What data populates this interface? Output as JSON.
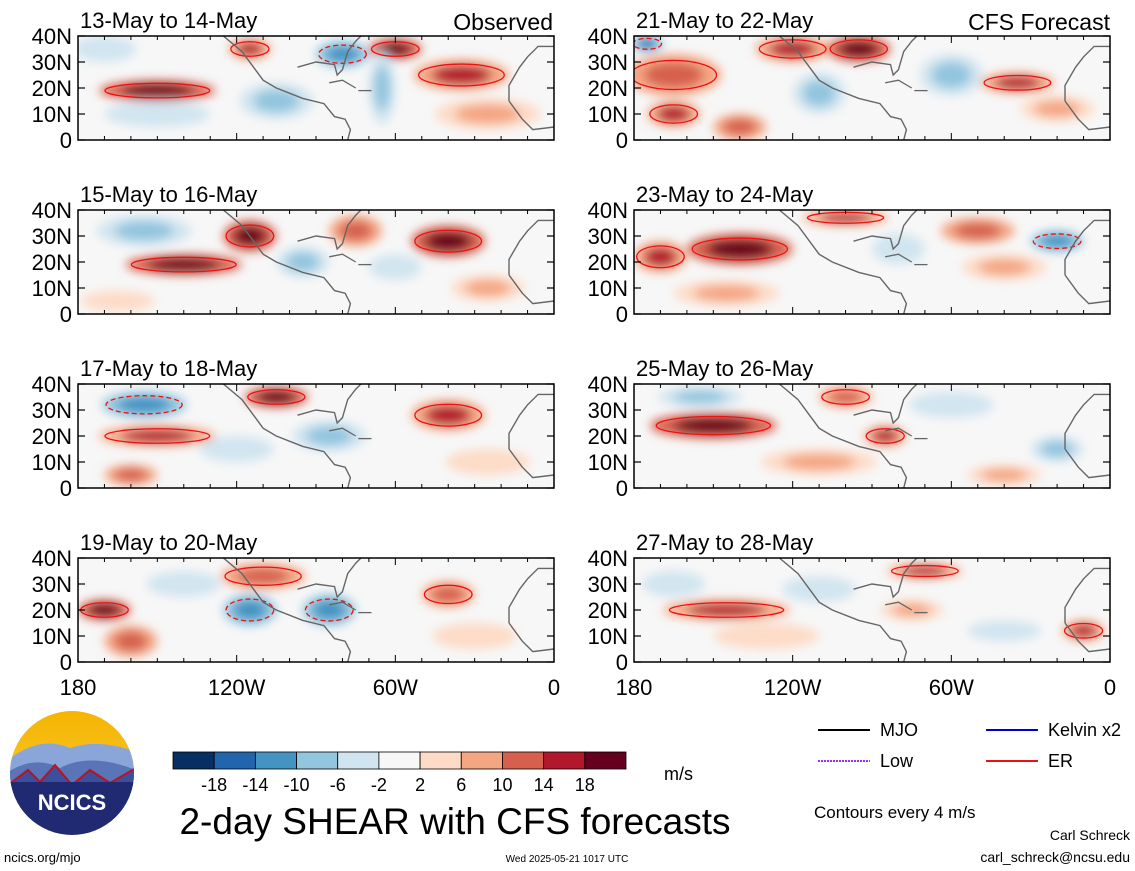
{
  "figure": {
    "title": "2-day SHEAR with CFS forecasts",
    "observed_label": "Observed",
    "forecast_label": "CFS Forecast",
    "contour_note": "Contours every 4 m/s",
    "source_url": "ncics.org/mjo",
    "timestamp": "Wed 2025-05-21 1017 UTC",
    "author": "Carl Schreck",
    "email": "carl_schreck@ncsu.edu",
    "logo_text": "NCICS"
  },
  "colorbar": {
    "unit": "m/s",
    "ticks": [
      "-18",
      "-14",
      "-10",
      "-6",
      "-2",
      "2",
      "6",
      "10",
      "14",
      "18"
    ],
    "colors": [
      "#053061",
      "#2166ac",
      "#4393c3",
      "#92c5de",
      "#d1e5f0",
      "#f7f7f7",
      "#fddbc7",
      "#f4a582",
      "#d6604d",
      "#b2182b",
      "#67001f"
    ]
  },
  "legend": {
    "items": [
      {
        "label": "MJO",
        "color": "#000000",
        "style": "solid"
      },
      {
        "label": "Kelvin x2",
        "color": "#0000cc",
        "style": "solid"
      },
      {
        "label": "Low",
        "color": "#9933ff",
        "style": "dotted"
      },
      {
        "label": "ER",
        "color": "#ee1111",
        "style": "solid"
      }
    ]
  },
  "chart_data": {
    "type": "heatmap",
    "variable": "SHEAR",
    "unit": "m/s",
    "xlim": [
      -180,
      0
    ],
    "ylim": [
      0,
      40
    ],
    "x_ticks": [
      -180,
      -120,
      -60,
      0
    ],
    "x_tick_labels": [
      "180",
      "120W",
      "60W",
      "0"
    ],
    "y_ticks": [
      0,
      10,
      20,
      30,
      40
    ],
    "y_tick_labels": [
      "0",
      "10N",
      "20N",
      "30N",
      "40N"
    ],
    "panels": [
      {
        "label": "13-May to 14-May",
        "source": "Observed",
        "features": [
          {
            "lon": -150,
            "lat": 19,
            "value": 20,
            "rlon": 22,
            "rlat": 4
          },
          {
            "lon": -115,
            "lat": 35,
            "value": 16,
            "rlon": 8,
            "rlat": 4
          },
          {
            "lon": -80,
            "lat": 33,
            "value": -12,
            "rlon": 10,
            "rlat": 5
          },
          {
            "lon": -60,
            "lat": 35,
            "value": 18,
            "rlon": 10,
            "rlat": 4
          },
          {
            "lon": -35,
            "lat": 25,
            "value": 14,
            "rlon": 18,
            "rlat": 6
          },
          {
            "lon": -150,
            "lat": 10,
            "value": -6,
            "rlon": 20,
            "rlat": 5
          },
          {
            "lon": -105,
            "lat": 15,
            "value": -8,
            "rlon": 14,
            "rlat": 7
          },
          {
            "lon": -65,
            "lat": 20,
            "value": -10,
            "rlon": 5,
            "rlat": 14
          },
          {
            "lon": -25,
            "lat": 10,
            "value": 6,
            "rlon": 20,
            "rlat": 6
          },
          {
            "lon": -170,
            "lat": 35,
            "value": -4,
            "rlon": 12,
            "rlat": 5
          }
        ]
      },
      {
        "label": "21-May to 22-May",
        "source": "CFS Forecast",
        "features": [
          {
            "lon": -165,
            "lat": 25,
            "value": 12,
            "rlon": 18,
            "rlat": 8
          },
          {
            "lon": -120,
            "lat": 35,
            "value": 16,
            "rlon": 14,
            "rlat": 5
          },
          {
            "lon": -95,
            "lat": 35,
            "value": 18,
            "rlon": 12,
            "rlat": 5
          },
          {
            "lon": -35,
            "lat": 22,
            "value": 16,
            "rlon": 14,
            "rlat": 4
          },
          {
            "lon": -110,
            "lat": 18,
            "value": -10,
            "rlon": 10,
            "rlat": 8
          },
          {
            "lon": -60,
            "lat": 25,
            "value": -8,
            "rlon": 12,
            "rlat": 8
          },
          {
            "lon": -175,
            "lat": 37,
            "value": -16,
            "rlon": 6,
            "rlat": 3
          },
          {
            "lon": -140,
            "lat": 5,
            "value": 10,
            "rlon": 10,
            "rlat": 5
          },
          {
            "lon": -165,
            "lat": 10,
            "value": 14,
            "rlon": 10,
            "rlat": 5
          },
          {
            "lon": -20,
            "lat": 12,
            "value": 6,
            "rlon": 14,
            "rlat": 5
          }
        ]
      },
      {
        "label": "15-May to 16-May",
        "source": "Observed",
        "features": [
          {
            "lon": -140,
            "lat": 19,
            "value": 18,
            "rlon": 22,
            "rlat": 4
          },
          {
            "lon": -115,
            "lat": 30,
            "value": 18,
            "rlon": 10,
            "rlat": 6
          },
          {
            "lon": -40,
            "lat": 28,
            "value": 18,
            "rlon": 14,
            "rlat": 6
          },
          {
            "lon": -75,
            "lat": 32,
            "value": 10,
            "rlon": 10,
            "rlat": 6
          },
          {
            "lon": -155,
            "lat": 32,
            "value": -8,
            "rlon": 18,
            "rlat": 6
          },
          {
            "lon": -95,
            "lat": 20,
            "value": -10,
            "rlon": 10,
            "rlat": 6
          },
          {
            "lon": -60,
            "lat": 18,
            "value": -6,
            "rlon": 10,
            "rlat": 5
          },
          {
            "lon": -25,
            "lat": 10,
            "value": 6,
            "rlon": 14,
            "rlat": 5
          },
          {
            "lon": -165,
            "lat": 5,
            "value": 4,
            "rlon": 14,
            "rlat": 4
          }
        ]
      },
      {
        "label": "23-May to 24-May",
        "source": "CFS Forecast",
        "features": [
          {
            "lon": -140,
            "lat": 25,
            "value": 20,
            "rlon": 20,
            "rlat": 6
          },
          {
            "lon": -170,
            "lat": 22,
            "value": 16,
            "rlon": 10,
            "rlat": 6
          },
          {
            "lon": -100,
            "lat": 37,
            "value": 16,
            "rlon": 16,
            "rlat": 3
          },
          {
            "lon": -50,
            "lat": 32,
            "value": 10,
            "rlon": 14,
            "rlat": 5
          },
          {
            "lon": -20,
            "lat": 28,
            "value": -12,
            "rlon": 10,
            "rlat": 4
          },
          {
            "lon": -80,
            "lat": 25,
            "value": -6,
            "rlon": 10,
            "rlat": 6
          },
          {
            "lon": -40,
            "lat": 18,
            "value": 8,
            "rlon": 16,
            "rlat": 5
          },
          {
            "lon": -145,
            "lat": 8,
            "value": 6,
            "rlon": 20,
            "rlat": 5
          }
        ]
      },
      {
        "label": "17-May to 18-May",
        "source": "Observed",
        "features": [
          {
            "lon": -150,
            "lat": 20,
            "value": 14,
            "rlon": 22,
            "rlat": 4
          },
          {
            "lon": -105,
            "lat": 35,
            "value": 18,
            "rlon": 12,
            "rlat": 4
          },
          {
            "lon": -40,
            "lat": 28,
            "value": 14,
            "rlon": 14,
            "rlat": 6
          },
          {
            "lon": -155,
            "lat": 32,
            "value": -12,
            "rlon": 16,
            "rlat": 5
          },
          {
            "lon": -85,
            "lat": 20,
            "value": -10,
            "rlon": 14,
            "rlat": 6
          },
          {
            "lon": -160,
            "lat": 5,
            "value": 10,
            "rlon": 10,
            "rlat": 4
          },
          {
            "lon": -120,
            "lat": 15,
            "value": -6,
            "rlon": 14,
            "rlat": 5
          },
          {
            "lon": -25,
            "lat": 10,
            "value": 4,
            "rlon": 16,
            "rlat": 5
          }
        ]
      },
      {
        "label": "25-May to 26-May",
        "source": "CFS Forecast",
        "features": [
          {
            "lon": -150,
            "lat": 24,
            "value": 20,
            "rlon": 24,
            "rlat": 5
          },
          {
            "lon": -85,
            "lat": 20,
            "value": 14,
            "rlon": 8,
            "rlat": 4
          },
          {
            "lon": -155,
            "lat": 35,
            "value": -10,
            "rlon": 16,
            "rlat": 4
          },
          {
            "lon": -60,
            "lat": 32,
            "value": -6,
            "rlon": 16,
            "rlat": 5
          },
          {
            "lon": -20,
            "lat": 15,
            "value": -8,
            "rlon": 10,
            "rlat": 5
          },
          {
            "lon": -110,
            "lat": 10,
            "value": 6,
            "rlon": 22,
            "rlat": 5
          },
          {
            "lon": -40,
            "lat": 5,
            "value": 8,
            "rlon": 14,
            "rlat": 4
          },
          {
            "lon": -100,
            "lat": 35,
            "value": 12,
            "rlon": 10,
            "rlat": 4
          }
        ]
      },
      {
        "label": "19-May to 20-May",
        "source": "Observed",
        "features": [
          {
            "lon": -170,
            "lat": 20,
            "value": 18,
            "rlon": 10,
            "rlat": 4
          },
          {
            "lon": -110,
            "lat": 33,
            "value": 12,
            "rlon": 16,
            "rlat": 5
          },
          {
            "lon": -40,
            "lat": 26,
            "value": 12,
            "rlon": 10,
            "rlat": 5
          },
          {
            "lon": -115,
            "lat": 20,
            "value": -12,
            "rlon": 10,
            "rlat": 6
          },
          {
            "lon": -85,
            "lat": 20,
            "value": -12,
            "rlon": 10,
            "rlat": 6
          },
          {
            "lon": -160,
            "lat": 8,
            "value": 10,
            "rlon": 10,
            "rlat": 6
          },
          {
            "lon": -140,
            "lat": 30,
            "value": -6,
            "rlon": 14,
            "rlat": 5
          },
          {
            "lon": -30,
            "lat": 10,
            "value": 4,
            "rlon": 16,
            "rlat": 5
          }
        ]
      },
      {
        "label": "27-May to 28-May",
        "source": "CFS Forecast",
        "features": [
          {
            "lon": -145,
            "lat": 20,
            "value": 16,
            "rlon": 24,
            "rlat": 4
          },
          {
            "lon": -70,
            "lat": 35,
            "value": 16,
            "rlon": 14,
            "rlat": 3
          },
          {
            "lon": -165,
            "lat": 30,
            "value": -6,
            "rlon": 12,
            "rlat": 5
          },
          {
            "lon": -110,
            "lat": 28,
            "value": -6,
            "rlon": 14,
            "rlat": 5
          },
          {
            "lon": -75,
            "lat": 20,
            "value": 8,
            "rlon": 12,
            "rlat": 4
          },
          {
            "lon": -10,
            "lat": 12,
            "value": 14,
            "rlon": 8,
            "rlat": 4
          },
          {
            "lon": -40,
            "lat": 12,
            "value": -6,
            "rlon": 14,
            "rlat": 4
          },
          {
            "lon": -130,
            "lat": 10,
            "value": 4,
            "rlon": 20,
            "rlat": 5
          }
        ]
      }
    ]
  }
}
